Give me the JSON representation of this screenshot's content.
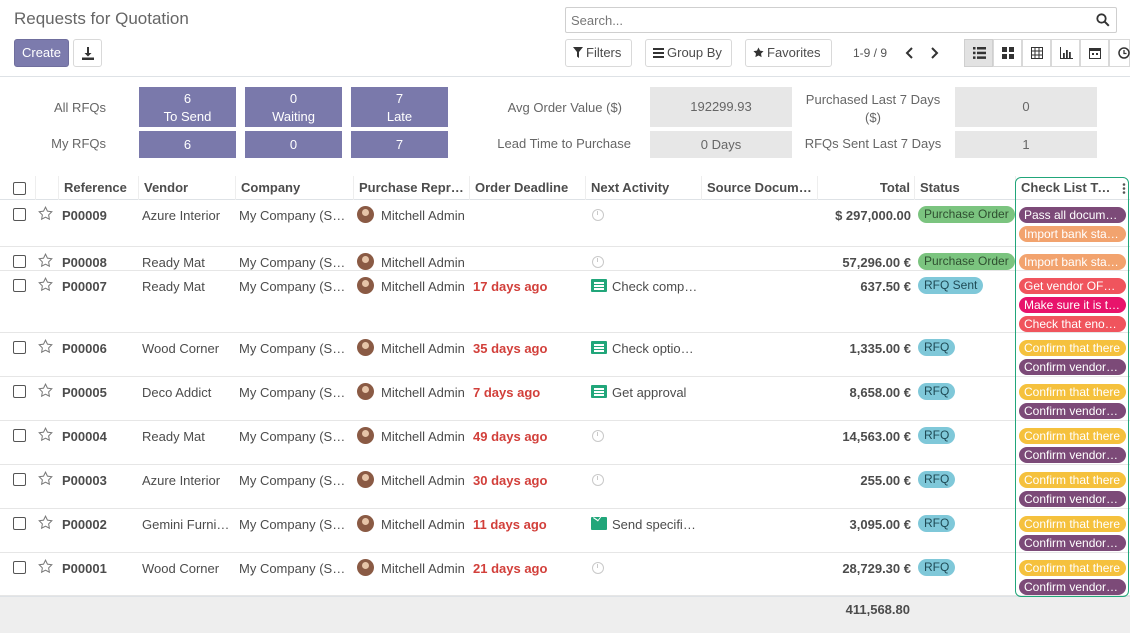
{
  "title": "Requests for Quotation",
  "buttons": {
    "create": "Create"
  },
  "search": {
    "placeholder": "Search..."
  },
  "filters": {
    "filters": "Filters",
    "group_by": "Group By",
    "favorites": "Favorites"
  },
  "pager": {
    "range": "1-9 / 9"
  },
  "dashboard": {
    "all_rfqs": "All RFQs",
    "my_rfqs": "My RFQs",
    "to_send_label": "To Send",
    "waiting_label": "Waiting",
    "late_label": "Late",
    "all_to_send": "6",
    "all_waiting": "0",
    "all_late": "7",
    "my_to_send": "6",
    "my_waiting": "0",
    "my_late": "7",
    "avg_order_label": "Avg Order Value ($)",
    "avg_order_value": "192299.93",
    "lead_time_label": "Lead Time to Purchase",
    "lead_time_value": "0  Days",
    "purchased_label_1": "Purchased Last 7 Days",
    "purchased_label_2": "($)",
    "purchased_value": "0",
    "rfqs_sent_label": "RFQs Sent Last 7 Days",
    "rfqs_sent_value": "1"
  },
  "columns": {
    "reference": "Reference",
    "vendor": "Vendor",
    "company": "Company",
    "rep": "Purchase Representative",
    "deadline": "Order Deadline",
    "activity": "Next Activity",
    "source": "Source Document",
    "total": "Total",
    "status": "Status",
    "checklist": "Check List To-Do"
  },
  "rows": [
    {
      "ref": "P00009",
      "vendor": "Azure Interior",
      "company": "My Company (San Francisco)",
      "rep": "Mitchell Admin",
      "deadline": "",
      "activity": "",
      "total": "$ 297,000.00",
      "status": "Purchase Order",
      "tags": [
        "Pass all documents",
        "Import bank statements"
      ]
    },
    {
      "ref": "P00008",
      "vendor": "Ready Mat",
      "company": "My Company (San Francisco)",
      "rep": "Mitchell Admin",
      "deadline": "",
      "activity": "",
      "total": "57,296.00 €",
      "status": "Purchase Order",
      "tags": [
        "Import bank statements"
      ]
    },
    {
      "ref": "P00007",
      "vendor": "Ready Mat",
      "company": "My Company (San Francisco)",
      "rep": "Mitchell Admin",
      "deadline": "17 days ago",
      "activity": "Check competitors",
      "total": "637.50 €",
      "status": "RFQ Sent",
      "tags": [
        "Get vendor OFFICIAL",
        "Make sure it is the",
        "Check that enough"
      ]
    },
    {
      "ref": "P00006",
      "vendor": "Wood Corner",
      "company": "My Company (San Francisco)",
      "rep": "Mitchell Admin",
      "deadline": "35 days ago",
      "activity": "Check optional products",
      "total": "1,335.00 €",
      "status": "RFQ",
      "tags": [
        "Confirm that there",
        "Confirm vendor rating"
      ]
    },
    {
      "ref": "P00005",
      "vendor": "Deco Addict",
      "company": "My Company (San Francisco)",
      "rep": "Mitchell Admin",
      "deadline": "7 days ago",
      "activity": "Get approval",
      "total": "8,658.00 €",
      "status": "RFQ",
      "tags": [
        "Confirm that there",
        "Confirm vendor rating"
      ]
    },
    {
      "ref": "P00004",
      "vendor": "Ready Mat",
      "company": "My Company (San Francisco)",
      "rep": "Mitchell Admin",
      "deadline": "49 days ago",
      "activity": "",
      "total": "14,563.00 €",
      "status": "RFQ",
      "tags": [
        "Confirm that there",
        "Confirm vendor rating"
      ]
    },
    {
      "ref": "P00003",
      "vendor": "Azure Interior",
      "company": "My Company (San Francisco)",
      "rep": "Mitchell Admin",
      "deadline": "30 days ago",
      "activity": "",
      "total": "255.00 €",
      "status": "RFQ",
      "tags": [
        "Confirm that there",
        "Confirm vendor rating"
      ]
    },
    {
      "ref": "P00002",
      "vendor": "Gemini Furniture",
      "company": "My Company (San Francisco)",
      "rep": "Mitchell Admin",
      "deadline": "11 days ago",
      "activity": "Send specifications",
      "total": "3,095.00 €",
      "status": "RFQ",
      "tags": [
        "Confirm that there",
        "Confirm vendor rating"
      ]
    },
    {
      "ref": "P00001",
      "vendor": "Wood Corner",
      "company": "My Company (San Francisco)",
      "rep": "Mitchell Admin",
      "deadline": "21 days ago",
      "activity": "",
      "total": "28,729.30 €",
      "status": "RFQ",
      "tags": [
        "Confirm that there",
        "Confirm vendor rating"
      ]
    }
  ],
  "footer": {
    "total": "411,568.80"
  },
  "colors": {
    "brand": "#7c7bad",
    "tile": "#7a79ab",
    "highlight": "#21a67a",
    "late": "#d23f3a",
    "tag_purple": "#7c4a78",
    "tag_orange": "#f2a36e",
    "tag_red": "#f0545d",
    "tag_pink": "#e8136b",
    "tag_yellow": "#f5c13d"
  },
  "icons": {
    "download": "download-icon",
    "search": "search-icon",
    "filter": "filter-icon",
    "group_by": "list-icon",
    "favorites": "star-icon",
    "views": [
      "list-view-icon",
      "kanban-view-icon",
      "pivot-view-icon",
      "graph-view-icon",
      "calendar-view-icon",
      "activity-view-icon"
    ]
  }
}
